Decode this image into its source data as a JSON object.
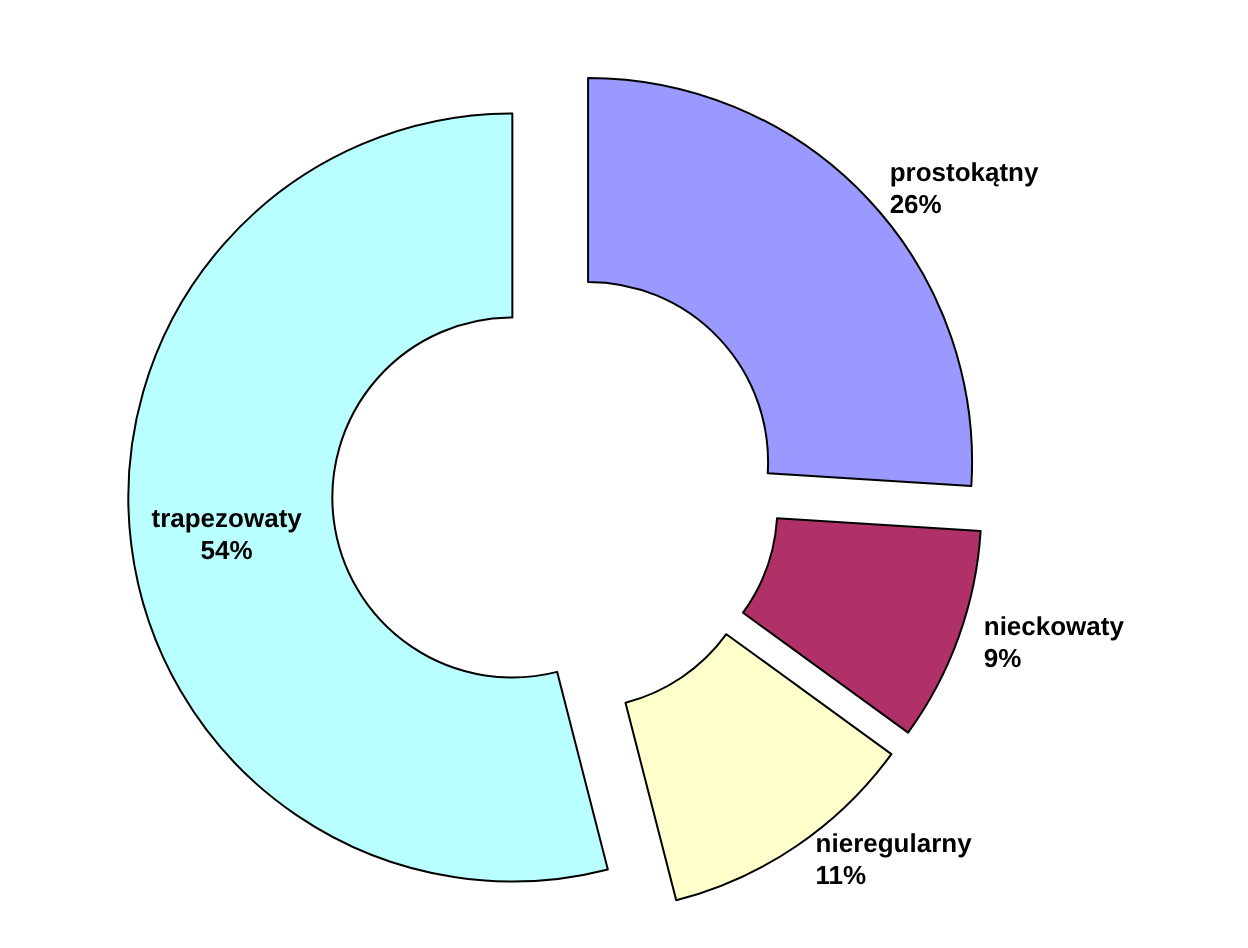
{
  "chart_data": {
    "type": "donut",
    "categories": [
      "prostokątny",
      "nieckowaty",
      "nieregularny",
      "trapezowaty"
    ],
    "values": [
      26,
      9,
      11,
      54
    ],
    "colors": [
      "#9999ff",
      "#b03068",
      "#ffffcc",
      "#b9ffff"
    ],
    "value_labels": [
      "26%",
      "9%",
      "11%",
      "54%"
    ],
    "legend": false
  }
}
